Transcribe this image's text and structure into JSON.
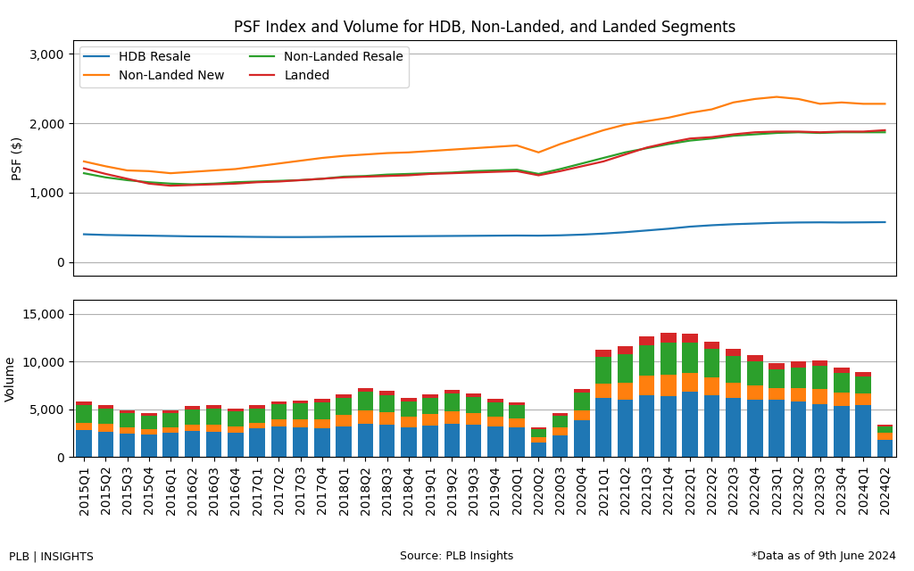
{
  "chart_data": [
    {
      "type": "line",
      "title": "PSF Index and Volume for HDB, Non-Landed, and Landed Segments",
      "ylabel": "PSF ($)",
      "categories": [
        "2015Q1",
        "2015Q2",
        "2015Q3",
        "2015Q4",
        "2016Q1",
        "2016Q2",
        "2016Q3",
        "2016Q4",
        "2017Q1",
        "2017Q2",
        "2017Q3",
        "2017Q4",
        "2018Q1",
        "2018Q2",
        "2018Q3",
        "2018Q4",
        "2019Q1",
        "2019Q2",
        "2019Q3",
        "2019Q4",
        "2020Q1",
        "2020Q2",
        "2020Q3",
        "2020Q4",
        "2021Q1",
        "2021Q2",
        "2021Q3",
        "2021Q4",
        "2022Q1",
        "2022Q2",
        "2022Q3",
        "2022Q4",
        "2023Q1",
        "2023Q2",
        "2023Q3",
        "2023Q4",
        "2024Q1",
        "2024Q2"
      ],
      "series": [
        {
          "name": "HDB Resale",
          "values": [
            400,
            390,
            385,
            380,
            375,
            370,
            368,
            365,
            362,
            360,
            360,
            362,
            365,
            367,
            370,
            372,
            374,
            376,
            378,
            380,
            382,
            380,
            385,
            395,
            410,
            430,
            455,
            480,
            510,
            530,
            545,
            555,
            565,
            570,
            572,
            570,
            572,
            575
          ]
        },
        {
          "name": "Non-Landed New",
          "values": [
            1450,
            1380,
            1320,
            1310,
            1280,
            1300,
            1320,
            1340,
            1380,
            1420,
            1460,
            1500,
            1530,
            1550,
            1570,
            1580,
            1600,
            1620,
            1640,
            1660,
            1680,
            1580,
            1700,
            1800,
            1900,
            1980,
            2030,
            2080,
            2150,
            2200,
            2300,
            2350,
            2380,
            2350,
            2280,
            2300,
            2280,
            2280
          ]
        },
        {
          "name": "Non-Landed Resale",
          "values": [
            1280,
            1220,
            1180,
            1150,
            1130,
            1120,
            1130,
            1150,
            1160,
            1170,
            1180,
            1200,
            1230,
            1240,
            1260,
            1270,
            1280,
            1290,
            1310,
            1320,
            1330,
            1270,
            1340,
            1420,
            1500,
            1580,
            1640,
            1700,
            1750,
            1780,
            1820,
            1840,
            1860,
            1870,
            1860,
            1870,
            1870,
            1870
          ]
        },
        {
          "name": "Landed",
          "values": [
            1350,
            1270,
            1200,
            1130,
            1100,
            1110,
            1120,
            1130,
            1150,
            1160,
            1180,
            1200,
            1220,
            1230,
            1240,
            1250,
            1270,
            1280,
            1290,
            1300,
            1310,
            1250,
            1310,
            1380,
            1450,
            1550,
            1650,
            1720,
            1780,
            1800,
            1840,
            1870,
            1880,
            1880,
            1870,
            1880,
            1880,
            1900
          ]
        }
      ],
      "ylim": [
        -200,
        3200
      ],
      "yticks": [
        0,
        {
          "value": 1000,
          "label": "1,000"
        },
        {
          "value": 2000,
          "label": "2,000"
        },
        {
          "value": 3000,
          "label": "3,000"
        }
      ],
      "grid": true,
      "legend": "upper left",
      "tick_labels": "y"
    },
    {
      "type": "bar",
      "stacked": true,
      "ylabel": "Volume",
      "categories": [
        "2015Q1",
        "2015Q2",
        "2015Q3",
        "2015Q4",
        "2016Q1",
        "2016Q2",
        "2016Q3",
        "2016Q4",
        "2017Q1",
        "2017Q2",
        "2017Q3",
        "2017Q4",
        "2018Q1",
        "2018Q2",
        "2018Q3",
        "2018Q4",
        "2019Q1",
        "2019Q2",
        "2019Q3",
        "2019Q4",
        "2020Q1",
        "2020Q2",
        "2020Q3",
        "2020Q4",
        "2021Q1",
        "2021Q2",
        "2021Q3",
        "2021Q4",
        "2022Q1",
        "2022Q2",
        "2022Q3",
        "2022Q4",
        "2023Q1",
        "2023Q2",
        "2023Q3",
        "2023Q4",
        "2024Q1",
        "2024Q2"
      ],
      "series": [
        {
          "values": [
            2800,
            2600,
            2400,
            2300,
            2500,
            2700,
            2600,
            2500,
            3000,
            3200,
            3100,
            3000,
            3200,
            3500,
            3400,
            3100,
            3300,
            3500,
            3400,
            3200,
            3100,
            1500,
            2200,
            3800,
            6200,
            6000,
            6500,
            6400,
            6800,
            6500,
            6200,
            6000,
            6000,
            5800,
            5500,
            5300,
            5400,
            1800
          ]
        },
        {
          "values": [
            800,
            900,
            700,
            600,
            600,
            700,
            800,
            700,
            600,
            700,
            800,
            900,
            1200,
            1400,
            1300,
            1100,
            1200,
            1300,
            1200,
            1000,
            900,
            600,
            900,
            1100,
            1500,
            1800,
            2000,
            2200,
            2000,
            1800,
            1600,
            1500,
            1200,
            1400,
            1600,
            1400,
            1200,
            700
          ]
        },
        {
          "values": [
            1800,
            1600,
            1500,
            1400,
            1500,
            1600,
            1700,
            1600,
            1500,
            1600,
            1700,
            1800,
            1800,
            1900,
            1800,
            1600,
            1700,
            1800,
            1700,
            1500,
            1400,
            800,
            1200,
            1800,
            2800,
            3000,
            3200,
            3400,
            3200,
            3000,
            2800,
            2500,
            2000,
            2200,
            2400,
            2100,
            1800,
            700
          ]
        },
        {
          "values": [
            400,
            350,
            300,
            280,
            280,
            300,
            300,
            280,
            300,
            320,
            340,
            360,
            380,
            400,
            380,
            360,
            380,
            400,
            380,
            350,
            330,
            200,
            300,
            400,
            700,
            800,
            900,
            1000,
            900,
            800,
            750,
            700,
            600,
            600,
            650,
            600,
            500,
            200
          ]
        }
      ],
      "ylim": [
        0,
        16500
      ],
      "yticks": [
        0,
        {
          "value": 5000,
          "label": "5,000"
        },
        {
          "value": 10000,
          "label": "10,000"
        },
        {
          "value": 15000,
          "label": "15,000"
        }
      ],
      "grid": true,
      "annotations": [
        "*Data as of 9th June 2024",
        "Source: PLB Insights",
        "PLB | INSIGHTS"
      ]
    }
  ]
}
